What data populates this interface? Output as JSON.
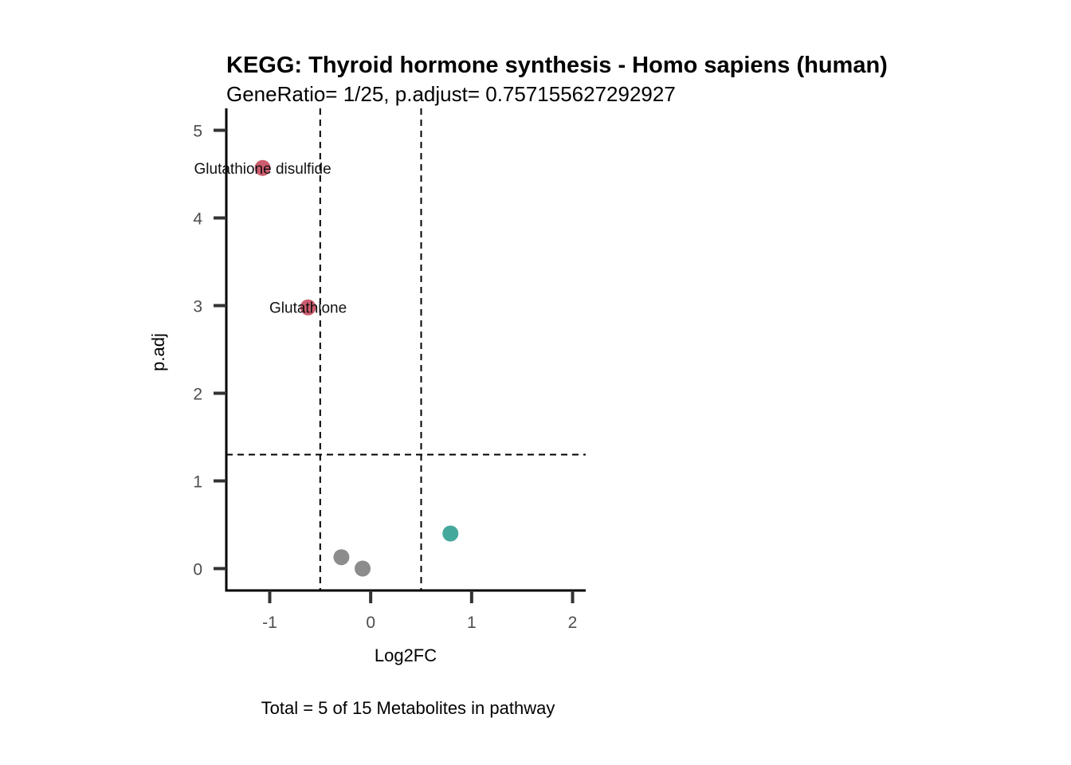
{
  "chart_data": {
    "type": "scatter",
    "title": "KEGG: Thyroid hormone synthesis - Homo sapiens (human)",
    "subtitle": "GeneRatio= 1/25, p.adjust= 0.757155627292927",
    "xlabel": "Log2FC",
    "ylabel": "p.adj",
    "caption": "Total = 5 of 15 Metabolites in pathway",
    "xlim": [
      -1.43,
      2.13
    ],
    "ylim": [
      -0.25,
      5.25
    ],
    "x_ticks": [
      -1,
      0,
      1,
      2
    ],
    "x_tick_labels": [
      "-1",
      "0",
      "1",
      "2"
    ],
    "y_ticks": [
      0,
      1,
      2,
      3,
      4,
      5
    ],
    "y_tick_labels": [
      "0",
      "1",
      "2",
      "3",
      "4",
      "5"
    ],
    "vlines": [
      -0.5,
      0.5
    ],
    "hline": 1.3,
    "grid": false,
    "colors": {
      "down": "#cd5c6e",
      "up": "#45a89c",
      "ns": "#8c8c8c"
    },
    "points": [
      {
        "x": -1.07,
        "y": 4.57,
        "group": "down",
        "label": "Glutathione disulfide"
      },
      {
        "x": -0.62,
        "y": 2.98,
        "group": "down",
        "label": "Glutathione"
      },
      {
        "x": 0.79,
        "y": 0.4,
        "group": "up",
        "label": ""
      },
      {
        "x": -0.29,
        "y": 0.13,
        "group": "ns",
        "label": ""
      },
      {
        "x": -0.08,
        "y": 0.0,
        "group": "ns",
        "label": ""
      }
    ]
  }
}
